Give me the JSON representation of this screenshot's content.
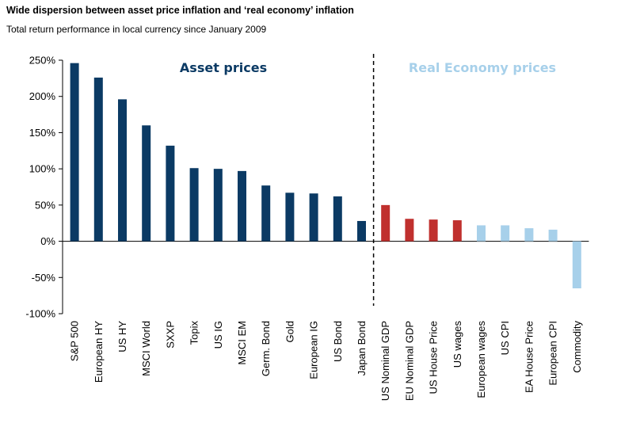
{
  "title": "Wide dispersion between asset price inflation and ‘real economy’ inflation",
  "subtitle": "Total return performance in local currency since January 2009",
  "chart_data": {
    "type": "bar",
    "categories": [
      "S&P 500",
      "European HY",
      "US HY",
      "MSCI World",
      "SXXP",
      "Topix",
      "US IG",
      "MSCI EM",
      "Germ. Bond",
      "Gold",
      "European IG",
      "US Bond",
      "Japan Bond",
      "US Nominal GDP",
      "EU Nominal GDP",
      "US House Price",
      "US wages",
      "European wages",
      "US CPI",
      "EA House Price",
      "European CPI",
      "Commodity"
    ],
    "values": [
      246,
      226,
      196,
      160,
      132,
      101,
      100,
      97,
      77,
      67,
      66,
      62,
      28,
      50,
      31,
      30,
      29,
      22,
      22,
      18,
      16,
      -65
    ],
    "groups": [
      "asset",
      "asset",
      "asset",
      "asset",
      "asset",
      "asset",
      "asset",
      "asset",
      "asset",
      "asset",
      "asset",
      "asset",
      "asset",
      "nominal",
      "nominal",
      "nominal",
      "nominal",
      "real",
      "real",
      "real",
      "real",
      "real"
    ],
    "colors": {
      "asset": "#0b3a64",
      "nominal": "#c0302e",
      "real": "#a7d0ea"
    },
    "ylim": [
      -100,
      250
    ],
    "yticks": [
      -100,
      -50,
      0,
      50,
      100,
      150,
      200,
      250
    ],
    "ytick_labels": [
      "-100%",
      "-50%",
      "0%",
      "50%",
      "100%",
      "150%",
      "200%",
      "250%"
    ],
    "region_labels": [
      {
        "text": "Asset prices",
        "color": "#0b3a64"
      },
      {
        "text": "Real Economy prices",
        "color": "#a7d0ea"
      }
    ],
    "divider": "dashed line between Japan Bond and US Nominal GDP",
    "xlabel": "",
    "ylabel": "",
    "grid": false
  }
}
